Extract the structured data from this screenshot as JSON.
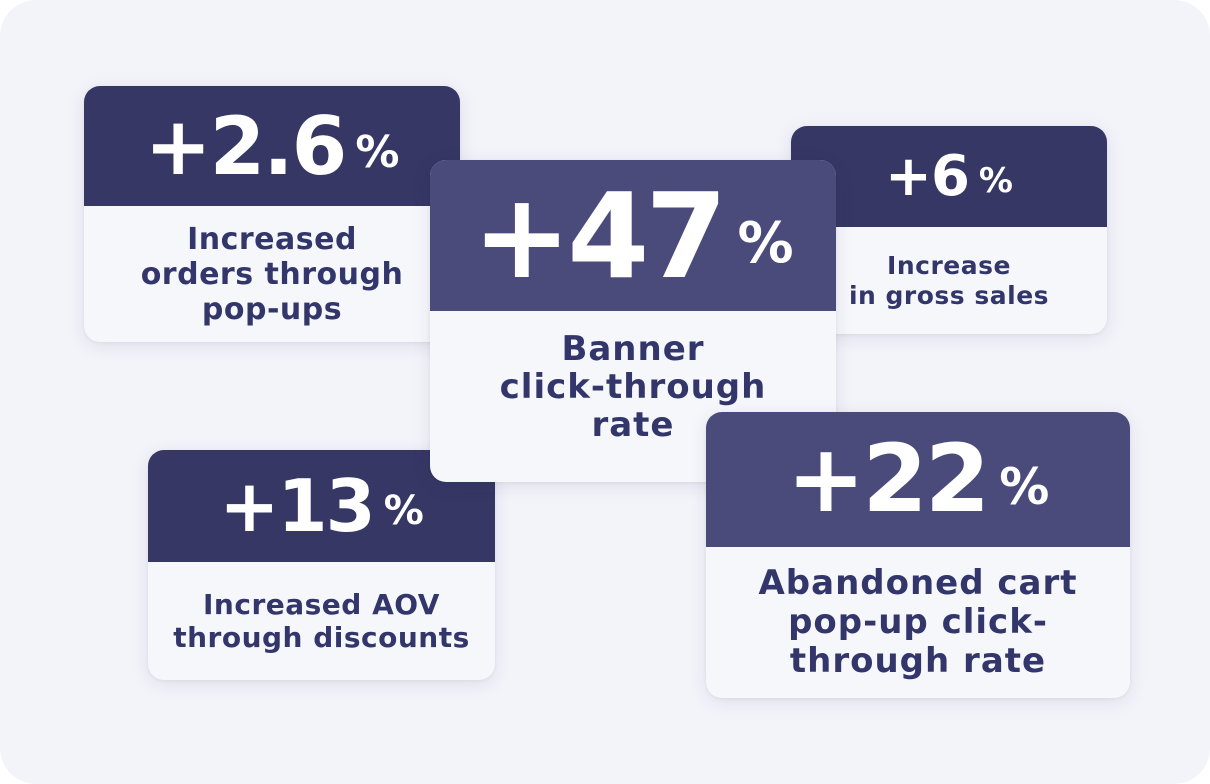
{
  "cards": [
    {
      "value": "+2.6",
      "unit": "%",
      "label": "Increased\norders through\npop-ups"
    },
    {
      "value": "+6",
      "unit": "%",
      "label": "Increase\nin gross sales"
    },
    {
      "value": "+47",
      "unit": "%",
      "label": "Banner\nclick-through\nrate"
    },
    {
      "value": "+13",
      "unit": "%",
      "label": "Increased AOV\nthrough discounts"
    },
    {
      "value": "+22",
      "unit": "%",
      "label": "Abandoned cart\npop-up click-\nthrough rate"
    }
  ],
  "colors": {
    "header_dark": "#363764",
    "header_mid": "#4a4b7b",
    "text": "#33366a",
    "card_background": "#f6f7fb",
    "page_background": "#f3f4fa"
  }
}
